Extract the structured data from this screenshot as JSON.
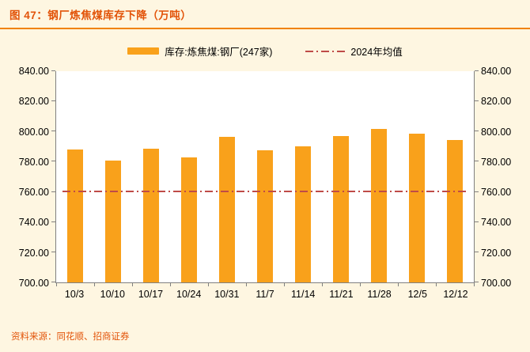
{
  "header": {
    "title": "图 47：钢厂炼焦煤库存下降（万吨）"
  },
  "footer": {
    "source": "资料来源：同花顺、招商证券"
  },
  "colors": {
    "background": "#FEF6E1",
    "title_text": "#E25308",
    "divider": "#F08200",
    "bar": "#F9A11B",
    "mean_line": "#BF4B47",
    "axis": "#808080",
    "plot_background": "#FFFFFF"
  },
  "chart_data": {
    "type": "bar",
    "title": "钢厂炼焦煤库存下降（万吨）",
    "categories": [
      "10/3",
      "10/10",
      "10/17",
      "10/24",
      "10/31",
      "11/7",
      "11/14",
      "11/21",
      "11/28",
      "12/5",
      "12/12"
    ],
    "series": [
      {
        "name": "库存:炼焦煤:钢厂(247家)",
        "values": [
          788,
          781,
          788.5,
          783,
          796.5,
          787.5,
          790,
          797,
          801.5,
          798.5,
          794.5
        ]
      }
    ],
    "mean_line": {
      "label": "2024年均值",
      "value": 760
    },
    "ylim": [
      700,
      840
    ],
    "yticks": [
      700,
      720,
      740,
      760,
      780,
      800,
      820,
      840
    ],
    "ytick_format": "two-decimals",
    "grid": false,
    "legend_position": "top",
    "dual_y_axis": true
  }
}
